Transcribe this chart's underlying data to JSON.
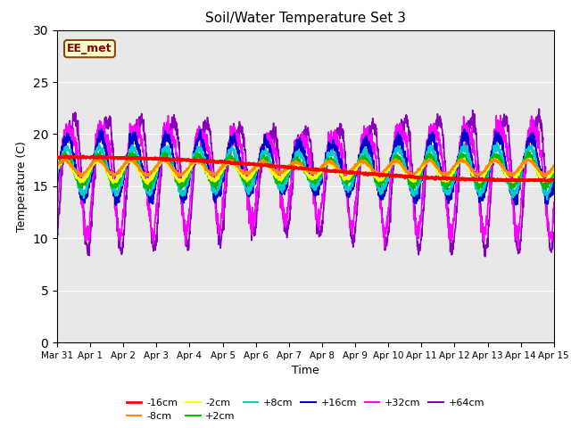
{
  "title": "Soil/Water Temperature Set 3",
  "xlabel": "Time",
  "ylabel": "Temperature (C)",
  "xlim": [
    0,
    15
  ],
  "ylim": [
    0,
    30
  ],
  "yticks": [
    0,
    5,
    10,
    15,
    20,
    25,
    30
  ],
  "xtick_labels": [
    "Mar 31",
    "Apr 1",
    "Apr 2",
    "Apr 3",
    "Apr 4",
    "Apr 5",
    "Apr 6",
    "Apr 7",
    "Apr 8",
    "Apr 9",
    "Apr 10",
    "Apr 11",
    "Apr 12",
    "Apr 13",
    "Apr 14",
    "Apr 15"
  ],
  "annotation_text": "EE_met",
  "annotation_bbox_facecolor": "#ffffcc",
  "annotation_bbox_edgecolor": "#8B4513",
  "annotation_text_color": "#8B0000",
  "background_color": "#e8e8e8",
  "series": {
    "-16cm": {
      "color": "#ff0000",
      "linewidth": 2.0
    },
    "-8cm": {
      "color": "#ff8800",
      "linewidth": 1.5
    },
    "-2cm": {
      "color": "#ffff00",
      "linewidth": 1.5
    },
    "+2cm": {
      "color": "#00bb00",
      "linewidth": 1.5
    },
    "+8cm": {
      "color": "#00cccc",
      "linewidth": 1.5
    },
    "+16cm": {
      "color": "#0000cc",
      "linewidth": 1.5
    },
    "+32cm": {
      "color": "#ff00ff",
      "linewidth": 1.2
    },
    "+64cm": {
      "color": "#8800bb",
      "linewidth": 1.2
    }
  },
  "figsize": [
    6.4,
    4.8
  ],
  "dpi": 100
}
